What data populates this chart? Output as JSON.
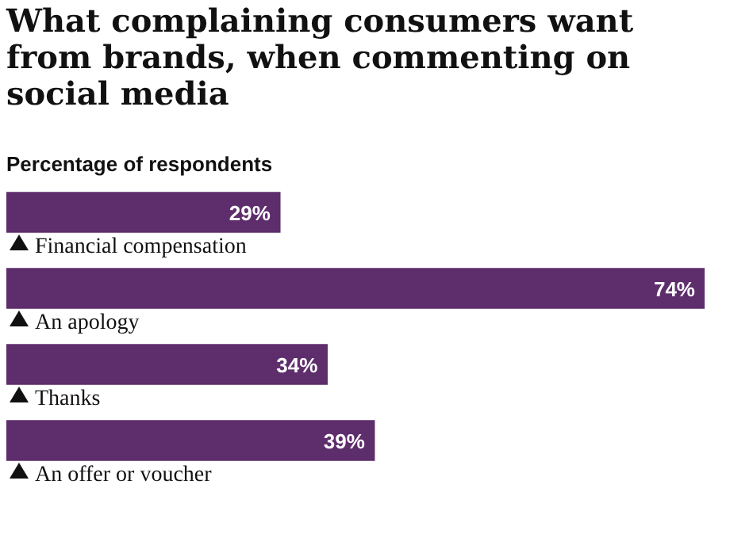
{
  "chart_data": {
    "type": "bar",
    "orientation": "horizontal",
    "title": "What complaining consumers want from brands, when commenting on social media",
    "subtitle": "Percentage of respondents",
    "categories": [
      "Financial compensation",
      "An apology",
      "Thanks",
      "An offer or voucher"
    ],
    "values": [
      29,
      74,
      34,
      39
    ],
    "value_labels": [
      "29%",
      "74%",
      "34%",
      "39%"
    ],
    "color": "#5e2d6c"
  }
}
